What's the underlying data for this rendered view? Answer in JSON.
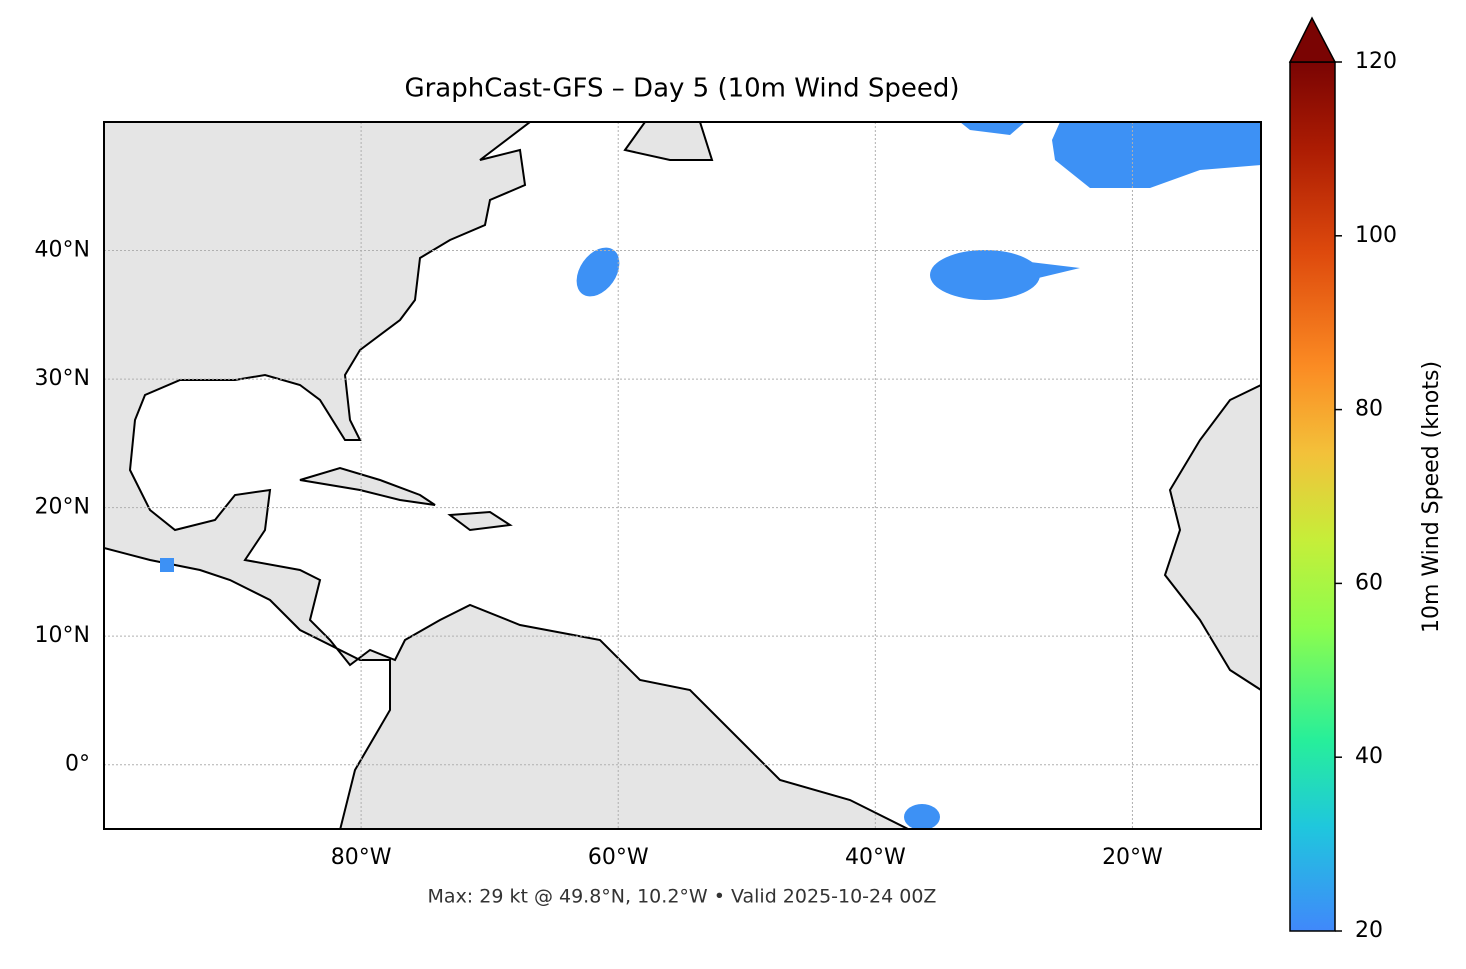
{
  "chart_data": {
    "type": "map",
    "title": "GraphCast-GFS – Day 5 (10m Wind Speed)",
    "footer": "Max: 29 kt @ 49.8°N, 10.2°W • Valid 2025-10-24 00Z",
    "xlim": [
      -100,
      -10
    ],
    "ylim": [
      -5,
      50
    ],
    "xticks": [
      {
        "value": -80,
        "label": "80°W"
      },
      {
        "value": -60,
        "label": "60°W"
      },
      {
        "value": -40,
        "label": "40°W"
      },
      {
        "value": -20,
        "label": "20°W"
      }
    ],
    "yticks": [
      {
        "value": 0,
        "label": "0°"
      },
      {
        "value": 10,
        "label": "10°N"
      },
      {
        "value": 20,
        "label": "20°N"
      },
      {
        "value": 30,
        "label": "30°N"
      },
      {
        "value": 40,
        "label": "40°N"
      }
    ],
    "grid": true,
    "colorbar": {
      "label": "10m Wind Speed (knots)",
      "lim": [
        20,
        120
      ],
      "ticks": [
        20,
        40,
        60,
        80,
        100,
        120
      ]
    }
  }
}
